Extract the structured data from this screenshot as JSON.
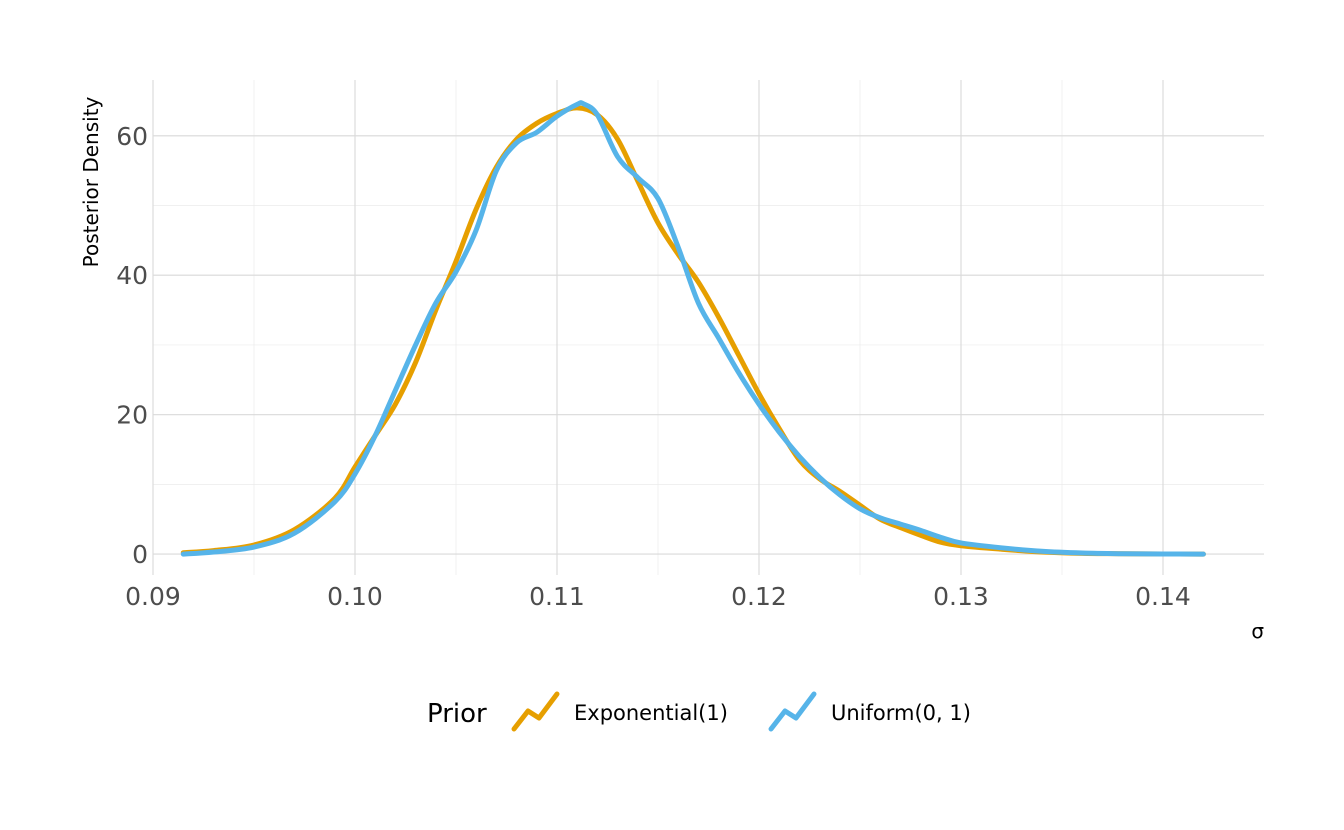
{
  "chart_data": {
    "type": "line",
    "xlabel": "σ",
    "ylabel": "Posterior Density",
    "xlim": [
      0.09,
      0.145
    ],
    "ylim": [
      -3,
      68
    ],
    "x_ticks": [
      0.09,
      0.1,
      0.11,
      0.12,
      0.13,
      0.14
    ],
    "x_tick_labels": [
      "0.09",
      "0.10",
      "0.11",
      "0.12",
      "0.13",
      "0.14"
    ],
    "y_ticks": [
      0,
      20,
      40,
      60
    ],
    "y_tick_labels": [
      "0",
      "20",
      "40",
      "60"
    ],
    "grid": true,
    "legend": {
      "title": "Prior",
      "position": "bottom"
    },
    "series": [
      {
        "name": "Exponential(1)",
        "color": "#E69F00",
        "x": [
          0.0915,
          0.093,
          0.095,
          0.097,
          0.099,
          0.1,
          0.101,
          0.102,
          0.103,
          0.104,
          0.105,
          0.106,
          0.107,
          0.108,
          0.109,
          0.11,
          0.111,
          0.112,
          0.113,
          0.114,
          0.115,
          0.116,
          0.117,
          0.118,
          0.119,
          0.12,
          0.121,
          0.122,
          0.123,
          0.124,
          0.125,
          0.126,
          0.127,
          0.128,
          0.129,
          0.13,
          0.132,
          0.134,
          0.136,
          0.138,
          0.14,
          0.142
        ],
        "y": [
          0.2,
          0.5,
          1.3,
          3.5,
          8.0,
          12.5,
          17.0,
          21.5,
          27.5,
          35.0,
          42.0,
          49.5,
          55.5,
          59.5,
          61.8,
          63.2,
          64.0,
          63.0,
          59.5,
          53.5,
          47.5,
          43.0,
          39.0,
          34.0,
          28.5,
          23.0,
          18.0,
          13.5,
          10.8,
          9.0,
          7.0,
          5.0,
          3.8,
          2.7,
          1.7,
          1.2,
          0.7,
          0.3,
          0.1,
          0.05,
          0.02,
          0.0
        ]
      },
      {
        "name": "Uniform(0, 1)",
        "color": "#56B4E9",
        "x": [
          0.0915,
          0.093,
          0.095,
          0.097,
          0.099,
          0.1,
          0.101,
          0.102,
          0.103,
          0.104,
          0.105,
          0.106,
          0.107,
          0.108,
          0.109,
          0.11,
          0.111,
          0.1113,
          0.112,
          0.113,
          0.114,
          0.115,
          0.116,
          0.117,
          0.118,
          0.119,
          0.12,
          0.121,
          0.122,
          0.123,
          0.124,
          0.125,
          0.126,
          0.127,
          0.128,
          0.129,
          0.13,
          0.132,
          0.134,
          0.136,
          0.138,
          0.14,
          0.142
        ],
        "y": [
          0.0,
          0.3,
          1.0,
          3.0,
          7.5,
          11.5,
          17.0,
          23.5,
          30.0,
          36.0,
          40.5,
          46.5,
          55.0,
          59.0,
          60.5,
          62.8,
          64.5,
          64.6,
          63.0,
          57.0,
          54.0,
          51.0,
          44.0,
          36.0,
          31.0,
          26.0,
          21.5,
          17.5,
          14.0,
          11.0,
          8.5,
          6.5,
          5.2,
          4.3,
          3.4,
          2.4,
          1.6,
          0.9,
          0.4,
          0.15,
          0.05,
          0.02,
          0.0
        ]
      }
    ]
  }
}
